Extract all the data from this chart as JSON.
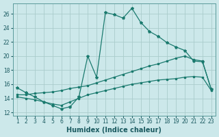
{
  "xlabel": "Humidex (Indice chaleur)",
  "background_color": "#cce8ea",
  "grid_color": "#aacccc",
  "line_color": "#1a7a6e",
  "xlim": [
    0.5,
    23.5
  ],
  "ylim": [
    11.5,
    27.5
  ],
  "xticks": [
    1,
    2,
    3,
    4,
    5,
    6,
    7,
    8,
    9,
    10,
    11,
    12,
    13,
    14,
    15,
    16,
    17,
    18,
    19,
    20,
    21,
    22,
    23
  ],
  "yticks": [
    12,
    14,
    16,
    18,
    20,
    22,
    24,
    26
  ],
  "series1_x": [
    1,
    2,
    3,
    4,
    5,
    6,
    7,
    8,
    9,
    10,
    11,
    12,
    13,
    14,
    15,
    16,
    17,
    18,
    19,
    20,
    21,
    22,
    23
  ],
  "series1_y": [
    15.5,
    14.8,
    14.2,
    13.5,
    13.0,
    12.5,
    12.8,
    14.2,
    20.0,
    17.0,
    26.2,
    25.9,
    25.4,
    26.8,
    24.8,
    23.5,
    22.8,
    21.9,
    21.3,
    20.8,
    19.3,
    19.2,
    15.3
  ],
  "series2_x": [
    1,
    2,
    3,
    4,
    5,
    6,
    7,
    8,
    9,
    10,
    11,
    12,
    13,
    14,
    15,
    16,
    17,
    18,
    19,
    20,
    21,
    22,
    23
  ],
  "series2_y": [
    14.5,
    14.5,
    14.7,
    14.8,
    14.9,
    15.1,
    15.4,
    15.6,
    15.8,
    16.2,
    16.6,
    17.0,
    17.4,
    17.8,
    18.2,
    18.6,
    18.9,
    19.3,
    19.7,
    20.0,
    19.5,
    19.3,
    15.2
  ],
  "series3_x": [
    1,
    2,
    3,
    4,
    5,
    6,
    7,
    8,
    9,
    10,
    11,
    12,
    13,
    14,
    15,
    16,
    17,
    18,
    19,
    20,
    21,
    22,
    23
  ],
  "series3_y": [
    14.2,
    14.0,
    13.8,
    13.5,
    13.2,
    13.0,
    13.5,
    14.0,
    14.5,
    14.8,
    15.1,
    15.4,
    15.7,
    16.0,
    16.2,
    16.4,
    16.6,
    16.7,
    16.8,
    17.0,
    17.1,
    17.0,
    15.1
  ]
}
